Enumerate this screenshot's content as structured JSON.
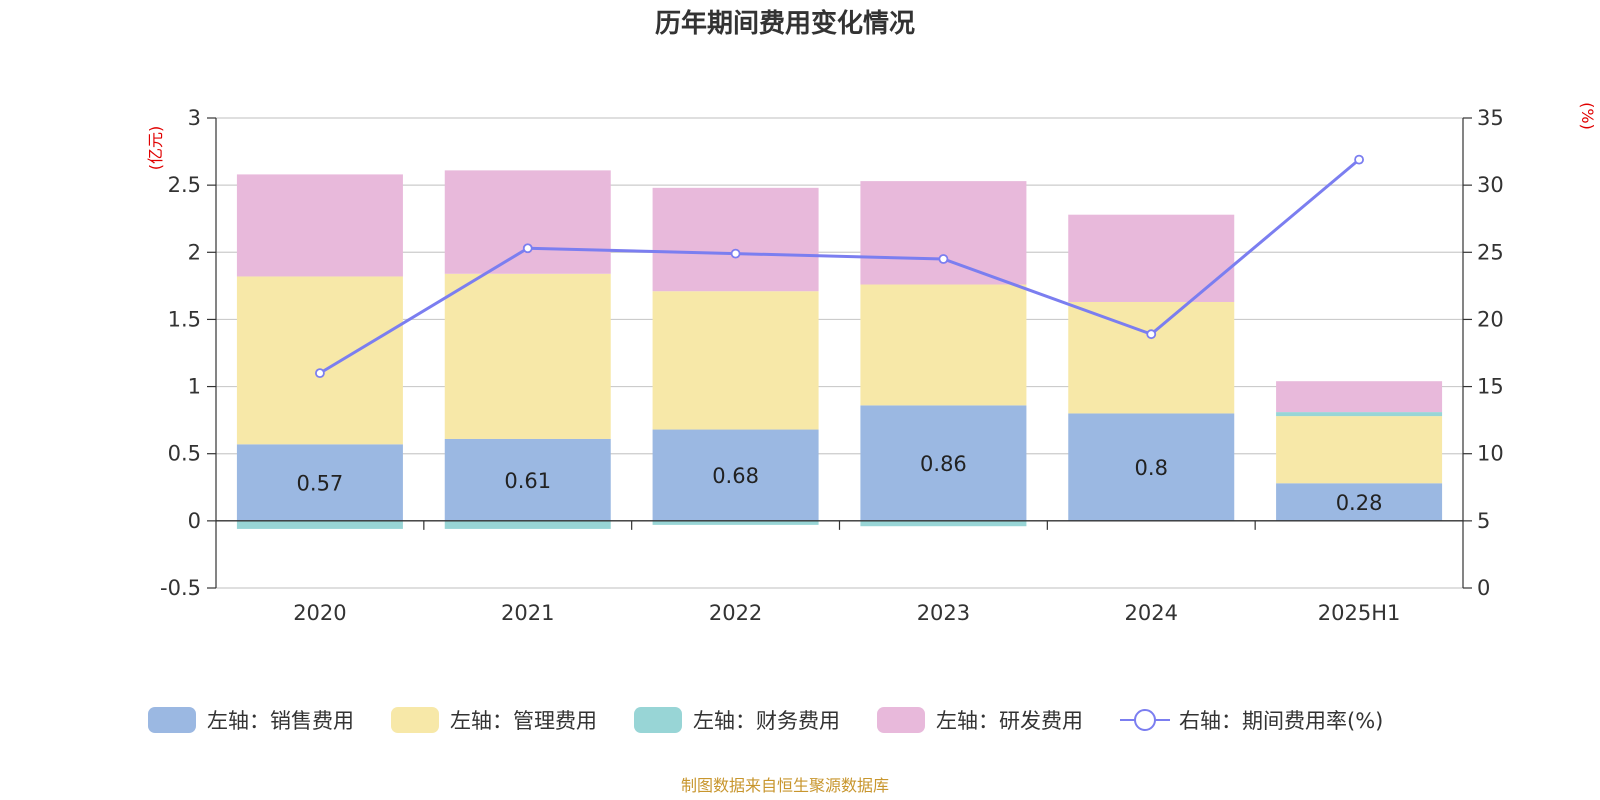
{
  "chart_data": {
    "type": "bar",
    "title": "历年期间费用变化情况",
    "categories": [
      "2020",
      "2021",
      "2022",
      "2023",
      "2024",
      "2025H1"
    ],
    "stacked": true,
    "left_axis": {
      "unit": "(亿元)",
      "ylim": [
        -0.5,
        3
      ],
      "ticks": [
        "3",
        "2.5",
        "2",
        "1.5",
        "1",
        "0.5",
        "0",
        "-0.5"
      ]
    },
    "right_axis": {
      "unit": "(%)",
      "ylim": [
        0,
        35
      ],
      "ticks": [
        "35",
        "30",
        "25",
        "20",
        "15",
        "10",
        "5",
        "0"
      ]
    },
    "grid": true,
    "legend_position": "bottom",
    "series": [
      {
        "name": "左轴：销售费用",
        "axis": "left",
        "color": "#9bb8e2",
        "values": [
          0.57,
          0.61,
          0.68,
          0.86,
          0.8,
          0.28
        ],
        "labels": [
          "0.57",
          "0.61",
          "0.68",
          "0.86",
          "0.8",
          "0.28"
        ]
      },
      {
        "name": "左轴：管理费用",
        "axis": "left",
        "color": "#f7e8a8",
        "values": [
          1.25,
          1.23,
          1.03,
          0.9,
          0.83,
          0.5
        ]
      },
      {
        "name": "左轴：财务费用",
        "axis": "left",
        "color": "#98d5d6",
        "values": [
          -0.06,
          -0.06,
          -0.03,
          -0.04,
          0.0,
          0.03
        ]
      },
      {
        "name": "左轴：研发费用",
        "axis": "left",
        "color": "#e8b9db",
        "values": [
          0.76,
          0.77,
          0.77,
          0.77,
          0.65,
          0.23
        ]
      },
      {
        "name": "右轴：期间费用率(%)",
        "axis": "right",
        "type": "line",
        "color": "#7b7ef0",
        "values": [
          16.0,
          25.3,
          24.9,
          24.5,
          18.9,
          31.9
        ]
      }
    ]
  },
  "source_note": "制图数据来自恒生聚源数据库",
  "colors": {
    "left_unit": "#e00000",
    "right_unit": "#e00000",
    "source": "#c8962e"
  }
}
